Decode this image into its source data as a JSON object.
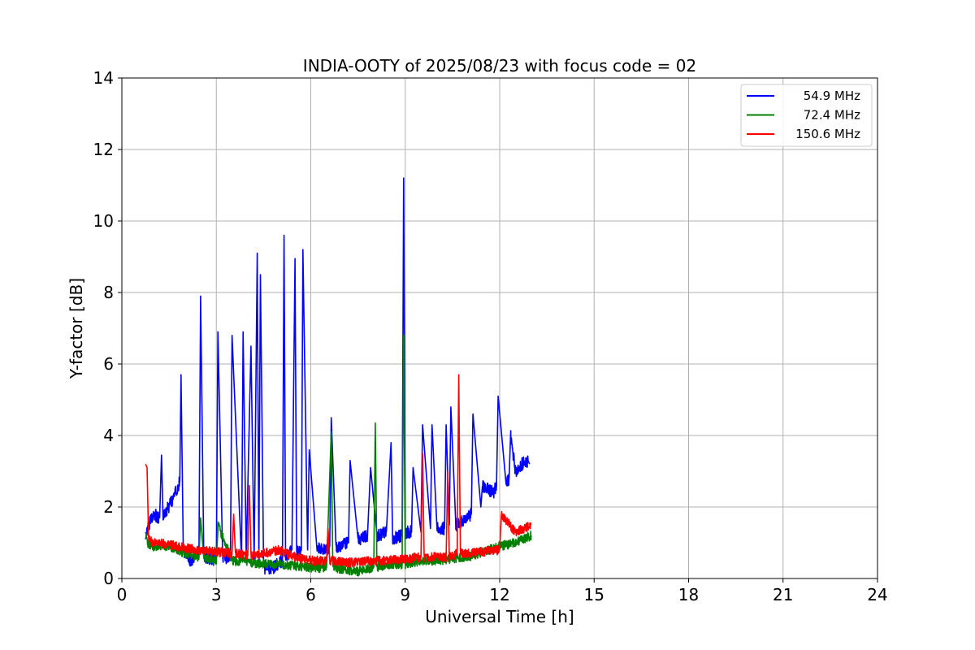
{
  "chart_data": {
    "type": "line",
    "title": "INDIA-OOTY of 2025/08/23 with focus code = 02",
    "xlabel": "Universal Time [h]",
    "ylabel": "Y-factor [dB]",
    "xlim": [
      0,
      24
    ],
    "ylim": [
      0,
      14
    ],
    "xticks": [
      0,
      3,
      6,
      9,
      12,
      15,
      18,
      21,
      24
    ],
    "yticks": [
      0,
      2,
      4,
      6,
      8,
      10,
      12,
      14
    ],
    "grid": true,
    "legend_position": "top-right",
    "series": [
      {
        "name": "54.9 MHz",
        "color": "#0000ff",
        "x": [
          0.75,
          0.9,
          1.0,
          1.2,
          1.26,
          1.3,
          1.5,
          1.7,
          1.84,
          1.88,
          1.95,
          2.2,
          2.45,
          2.5,
          2.6,
          3.0,
          3.05,
          3.2,
          3.45,
          3.5,
          3.8,
          3.85,
          3.95,
          4.1,
          4.2,
          4.3,
          4.35,
          4.4,
          4.5,
          4.6,
          4.8,
          5.1,
          5.15,
          5.2,
          5.4,
          5.5,
          5.55,
          5.7,
          5.75,
          5.9,
          5.95,
          6.2,
          6.5,
          6.6,
          6.65,
          6.8,
          7.2,
          7.25,
          7.5,
          7.8,
          7.9,
          8.1,
          8.4,
          8.55,
          8.6,
          8.9,
          8.95,
          9.0,
          9.2,
          9.25,
          9.5,
          9.55,
          9.8,
          9.85,
          10.0,
          10.25,
          10.3,
          10.4,
          10.45,
          10.6,
          10.8,
          11.1,
          11.15,
          11.4,
          11.45,
          11.8,
          11.9,
          11.95,
          12.2,
          12.3,
          12.35,
          12.5,
          12.7,
          12.9,
          12.95
        ],
        "values": [
          1.2,
          1.6,
          1.8,
          1.7,
          3.45,
          1.8,
          2.0,
          2.4,
          2.7,
          5.7,
          0.7,
          0.5,
          0.8,
          7.9,
          0.6,
          0.5,
          6.9,
          0.5,
          0.7,
          6.8,
          0.5,
          6.9,
          0.6,
          6.5,
          0.5,
          9.1,
          0.5,
          8.5,
          0.3,
          0.3,
          0.3,
          0.5,
          9.6,
          0.6,
          0.8,
          8.95,
          0.7,
          0.8,
          9.2,
          0.8,
          3.6,
          0.9,
          0.8,
          0.9,
          4.5,
          0.9,
          1.0,
          3.3,
          1.1,
          1.2,
          3.1,
          1.2,
          1.3,
          3.8,
          1.1,
          1.2,
          11.2,
          1.3,
          1.3,
          3.1,
          1.3,
          4.3,
          1.4,
          4.3,
          1.4,
          1.4,
          4.3,
          1.5,
          4.8,
          1.5,
          1.6,
          1.8,
          4.6,
          2.0,
          2.6,
          2.4,
          2.6,
          5.1,
          2.7,
          2.8,
          4.0,
          3.0,
          3.2,
          3.3,
          3.2
        ]
      },
      {
        "name": "72.4 MHz",
        "color": "#008000",
        "x": [
          0.75,
          0.8,
          1.0,
          1.5,
          1.8,
          2.0,
          2.45,
          2.5,
          2.6,
          3.0,
          3.05,
          3.5,
          4.0,
          4.5,
          5.0,
          6.0,
          6.5,
          6.65,
          6.7,
          7.0,
          7.5,
          8.0,
          8.05,
          8.1,
          8.5,
          8.9,
          8.95,
          9.0,
          9.5,
          10.0,
          11.0,
          11.5,
          12.0,
          12.5,
          13.0
        ],
        "values": [
          1.3,
          1.0,
          0.9,
          0.9,
          0.8,
          0.7,
          0.6,
          1.7,
          0.6,
          0.5,
          1.5,
          0.5,
          0.45,
          0.4,
          0.4,
          0.3,
          0.3,
          4.1,
          0.3,
          0.25,
          0.2,
          0.3,
          4.35,
          0.3,
          0.4,
          0.4,
          6.8,
          0.4,
          0.5,
          0.5,
          0.6,
          0.75,
          0.9,
          1.0,
          1.2
        ]
      },
      {
        "name": "150.6 MHz",
        "color": "#ff0000",
        "x": [
          0.75,
          0.8,
          0.85,
          1.0,
          1.5,
          2.0,
          2.5,
          3.0,
          3.5,
          3.55,
          3.6,
          4.0,
          4.05,
          4.1,
          4.5,
          5.0,
          5.5,
          6.0,
          6.5,
          6.55,
          6.6,
          7.0,
          7.5,
          8.0,
          8.5,
          9.0,
          9.5,
          9.55,
          9.6,
          10.0,
          10.3,
          10.35,
          10.4,
          10.65,
          10.7,
          10.75,
          11.0,
          11.5,
          12.0,
          12.05,
          12.5,
          13.0
        ],
        "values": [
          3.2,
          3.1,
          1.1,
          1.0,
          0.95,
          0.85,
          0.8,
          0.75,
          0.7,
          1.8,
          0.7,
          0.65,
          2.6,
          0.65,
          0.7,
          0.8,
          0.6,
          0.5,
          0.5,
          1.4,
          0.5,
          0.45,
          0.45,
          0.5,
          0.5,
          0.55,
          0.6,
          3.5,
          0.6,
          0.6,
          0.6,
          3.0,
          0.6,
          0.7,
          5.7,
          0.7,
          0.7,
          0.75,
          0.8,
          1.8,
          1.3,
          1.5
        ]
      }
    ]
  }
}
